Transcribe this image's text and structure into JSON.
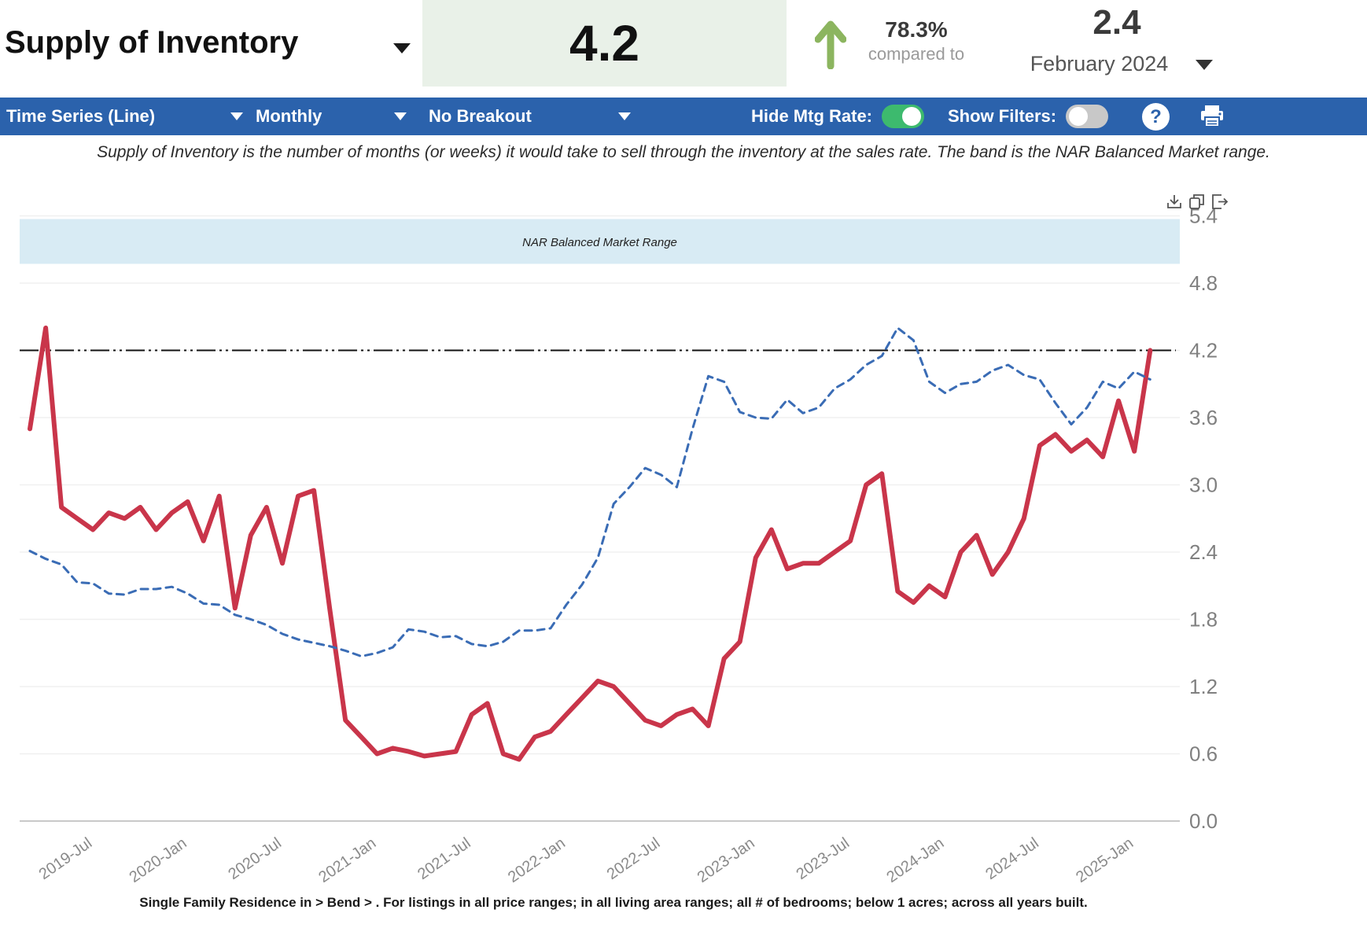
{
  "header": {
    "title": "Supply of Inventory",
    "current_value": "4.2",
    "change_pct": "78.3%",
    "compared_label": "compared to",
    "previous_value": "2.4",
    "previous_period": "February 2024",
    "arrow_direction": "up",
    "arrow_color": "#8cb55f",
    "value_box_color": "#e9f1e8"
  },
  "toolbar": {
    "background_color": "#2b62ac",
    "chart_type": "Time Series (Line)",
    "frequency": "Monthly",
    "breakout": "No Breakout",
    "hide_mtg_label": "Hide Mtg Rate:",
    "hide_mtg_on": true,
    "show_filters_label": "Show Filters:",
    "show_filters_on": false,
    "help_label": "?",
    "icons": [
      "help-icon",
      "print-icon"
    ]
  },
  "description": "Supply of Inventory is the number of months (or weeks) it would take to sell through the inventory at the sales rate. The band is the NAR Balanced Market range.",
  "footnote": "Single Family Residence in > Bend > . For listings in all price ranges; in all living area ranges; all # of bedrooms; below 1 acres; across all years built.",
  "chart_icons": [
    "download-icon",
    "copy-icon",
    "export-icon"
  ],
  "chart_data": {
    "type": "line",
    "title": "",
    "xlabel": "",
    "ylabel": "",
    "ylim": [
      0,
      5.4
    ],
    "grid": "horizontal",
    "yticks": [
      "5.4",
      "4.8",
      "4.2",
      "3.6",
      "3.0",
      "2.4",
      "1.8",
      "1.2",
      "0.6",
      "0.0"
    ],
    "xticks": [
      "2019-Jul",
      "2020-Jan",
      "2020-Jul",
      "2021-Jan",
      "2021-Jul",
      "2022-Jan",
      "2022-Jul",
      "2023-Jan",
      "2023-Jul",
      "2024-Jan",
      "2024-Jul",
      "2025-Jan"
    ],
    "xtick_indices": [
      4,
      10,
      16,
      22,
      28,
      34,
      40,
      46,
      52,
      58,
      64,
      70
    ],
    "band": {
      "label": "NAR Balanced Market Range",
      "range": [
        5.0,
        5.4
      ],
      "color": "#d8ebf4"
    },
    "reference_line": {
      "value": 4.2,
      "style": "dash-dot",
      "color": "#111111"
    },
    "x": [
      "2019-Mar",
      "2019-Apr",
      "2019-May",
      "2019-Jun",
      "2019-Jul",
      "2019-Aug",
      "2019-Sep",
      "2019-Oct",
      "2019-Nov",
      "2019-Dec",
      "2020-Jan",
      "2020-Feb",
      "2020-Mar",
      "2020-Apr",
      "2020-May",
      "2020-Jun",
      "2020-Jul",
      "2020-Aug",
      "2020-Sep",
      "2020-Oct",
      "2020-Nov",
      "2020-Dec",
      "2021-Jan",
      "2021-Feb",
      "2021-Mar",
      "2021-Apr",
      "2021-May",
      "2021-Jun",
      "2021-Jul",
      "2021-Aug",
      "2021-Sep",
      "2021-Oct",
      "2021-Nov",
      "2021-Dec",
      "2022-Jan",
      "2022-Feb",
      "2022-Mar",
      "2022-Apr",
      "2022-May",
      "2022-Jun",
      "2022-Jul",
      "2022-Aug",
      "2022-Sep",
      "2022-Oct",
      "2022-Nov",
      "2022-Dec",
      "2023-Jan",
      "2023-Feb",
      "2023-Mar",
      "2023-Apr",
      "2023-May",
      "2023-Jun",
      "2023-Jul",
      "2023-Aug",
      "2023-Sep",
      "2023-Oct",
      "2023-Nov",
      "2023-Dec",
      "2024-Jan",
      "2024-Feb",
      "2024-Mar",
      "2024-Apr",
      "2024-May",
      "2024-Jun",
      "2024-Jul",
      "2024-Aug",
      "2024-Sep",
      "2024-Oct",
      "2024-Nov",
      "2024-Dec",
      "2025-Jan",
      "2025-Feb"
    ],
    "series": [
      {
        "name": "Supply of Inventory",
        "color": "#c9354a",
        "style": "solid",
        "values": [
          3.5,
          4.4,
          2.8,
          2.7,
          2.6,
          2.75,
          2.7,
          2.8,
          2.6,
          2.75,
          2.85,
          2.5,
          2.9,
          1.9,
          2.55,
          2.8,
          2.3,
          2.9,
          2.95,
          1.9,
          0.9,
          0.75,
          0.6,
          0.65,
          0.62,
          0.58,
          0.6,
          0.62,
          0.95,
          1.05,
          0.6,
          0.55,
          0.75,
          0.8,
          0.95,
          1.1,
          1.25,
          1.2,
          1.05,
          0.9,
          0.85,
          0.95,
          1.0,
          0.85,
          1.45,
          1.6,
          2.35,
          2.6,
          2.25,
          2.3,
          2.3,
          2.4,
          2.5,
          3.0,
          3.1,
          2.05,
          1.95,
          2.1,
          2.0,
          2.4,
          2.55,
          2.2,
          2.4,
          2.7,
          3.35,
          3.45,
          3.3,
          3.4,
          3.25,
          3.75,
          3.3,
          4.2
        ]
      },
      {
        "name": "Mtg Rate (hidden secondary axis, plotted values)",
        "color": "#3a6cb5",
        "style": "dashed",
        "values": [
          2.41,
          2.34,
          2.29,
          2.13,
          2.12,
          2.03,
          2.02,
          2.07,
          2.07,
          2.09,
          2.03,
          1.94,
          1.93,
          1.84,
          1.8,
          1.75,
          1.67,
          1.62,
          1.59,
          1.56,
          1.52,
          1.47,
          1.5,
          1.55,
          1.71,
          1.69,
          1.64,
          1.65,
          1.58,
          1.56,
          1.6,
          1.7,
          1.7,
          1.72,
          1.93,
          2.11,
          2.35,
          2.83,
          2.98,
          3.15,
          3.09,
          2.98,
          3.5,
          3.97,
          3.92,
          3.65,
          3.6,
          3.59,
          3.76,
          3.64,
          3.69,
          3.86,
          3.94,
          4.07,
          4.15,
          4.4,
          4.29,
          3.92,
          3.82,
          3.9,
          3.92,
          4.02,
          4.07,
          3.98,
          3.94,
          3.73,
          3.54,
          3.69,
          3.92,
          3.86,
          4.01,
          3.94
        ]
      }
    ]
  }
}
